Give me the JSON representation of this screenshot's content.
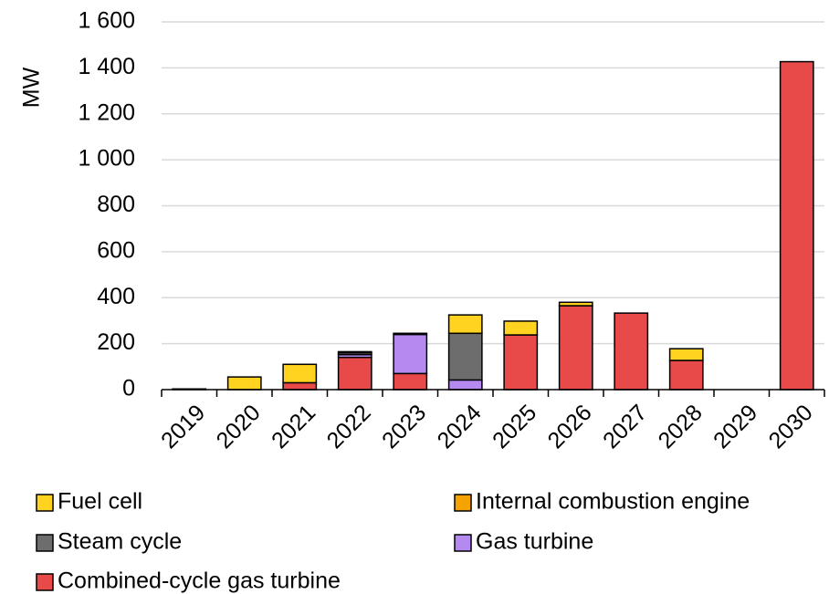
{
  "chart_data": {
    "type": "stacked_bar",
    "y_label": "MW",
    "categories": [
      "2019",
      "2020",
      "2021",
      "2022",
      "2023",
      "2024",
      "2025",
      "2026",
      "2027",
      "2028",
      "2029",
      "2030"
    ],
    "series": [
      {
        "name": "Fuel cell",
        "color": "#ffd320",
        "values": [
          3,
          55,
          80,
          5,
          0,
          80,
          60,
          15,
          0,
          51,
          0,
          0
        ]
      },
      {
        "name": "Internal combustion engine",
        "color": "#f4a300",
        "values": [
          0,
          0,
          0,
          0,
          0,
          0,
          0,
          0,
          0,
          0,
          0,
          0
        ]
      },
      {
        "name": "Steam cycle",
        "color": "#6d6d6d",
        "values": [
          0,
          0,
          0,
          8,
          5,
          203,
          0,
          0,
          0,
          0,
          0,
          0
        ]
      },
      {
        "name": "Gas turbine",
        "color": "#b48af0",
        "values": [
          0,
          0,
          0,
          12,
          170,
          42,
          0,
          0,
          0,
          0,
          0,
          0
        ]
      },
      {
        "name": "Combined-cycle gas turbine",
        "color": "#e84a4a",
        "values": [
          0,
          0,
          30,
          140,
          70,
          0,
          238,
          365,
          333,
          127,
          0,
          1427
        ]
      }
    ],
    "ylim": [
      0,
      1600
    ],
    "yticks": [
      0,
      200,
      400,
      600,
      800,
      {
        "value": 1000,
        "label": "1 000"
      },
      {
        "value": 1200,
        "label": "1 200"
      },
      {
        "value": 1400,
        "label": "1 400"
      },
      {
        "value": 1600,
        "label": "1 600"
      }
    ],
    "grid": true,
    "legend": "bottom"
  }
}
